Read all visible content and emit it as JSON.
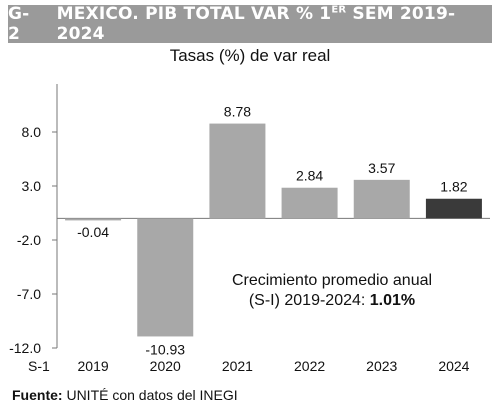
{
  "header": {
    "code": "G-2",
    "title_main": "MEXICO. PIB TOTAL VAR % 1",
    "title_sup": "ER",
    "title_tail": " SEM 2019-2024"
  },
  "subtitle": "Tasas (%) de var real",
  "annotation": {
    "line1": "Crecimiento promedio anual",
    "line2_prefix": "(S-I) 2019-2024: ",
    "line2_value": "1.01%"
  },
  "footer": {
    "source_label": "Fuente:",
    "source_text": " UNITÉ con datos del INEGI"
  },
  "chart_data": {
    "type": "bar",
    "xlabel": "S-1",
    "ylabel": "",
    "categories": [
      "2019",
      "2020",
      "2021",
      "2022",
      "2023",
      "2024"
    ],
    "values": [
      -0.04,
      -10.93,
      8.78,
      2.84,
      3.57,
      1.82
    ],
    "data_labels": [
      "-0.04",
      "-10.93",
      "8.78",
      "2.84",
      "3.57",
      "1.82"
    ],
    "ylim": [
      -12.0,
      13.0
    ],
    "yticks": [
      8.0,
      3.0,
      -2.0,
      -7.0,
      -12.0
    ],
    "ytick_labels": [
      "8.0",
      "3.0",
      "-2.0",
      "-7.0",
      "-12.0"
    ],
    "grid": false,
    "colors": {
      "bar": "#a8a8a8",
      "bar_highlight": "#3a3a3a",
      "header_bg": "#9a9a9a",
      "axis": "#777777"
    },
    "highlight_index": 5
  }
}
